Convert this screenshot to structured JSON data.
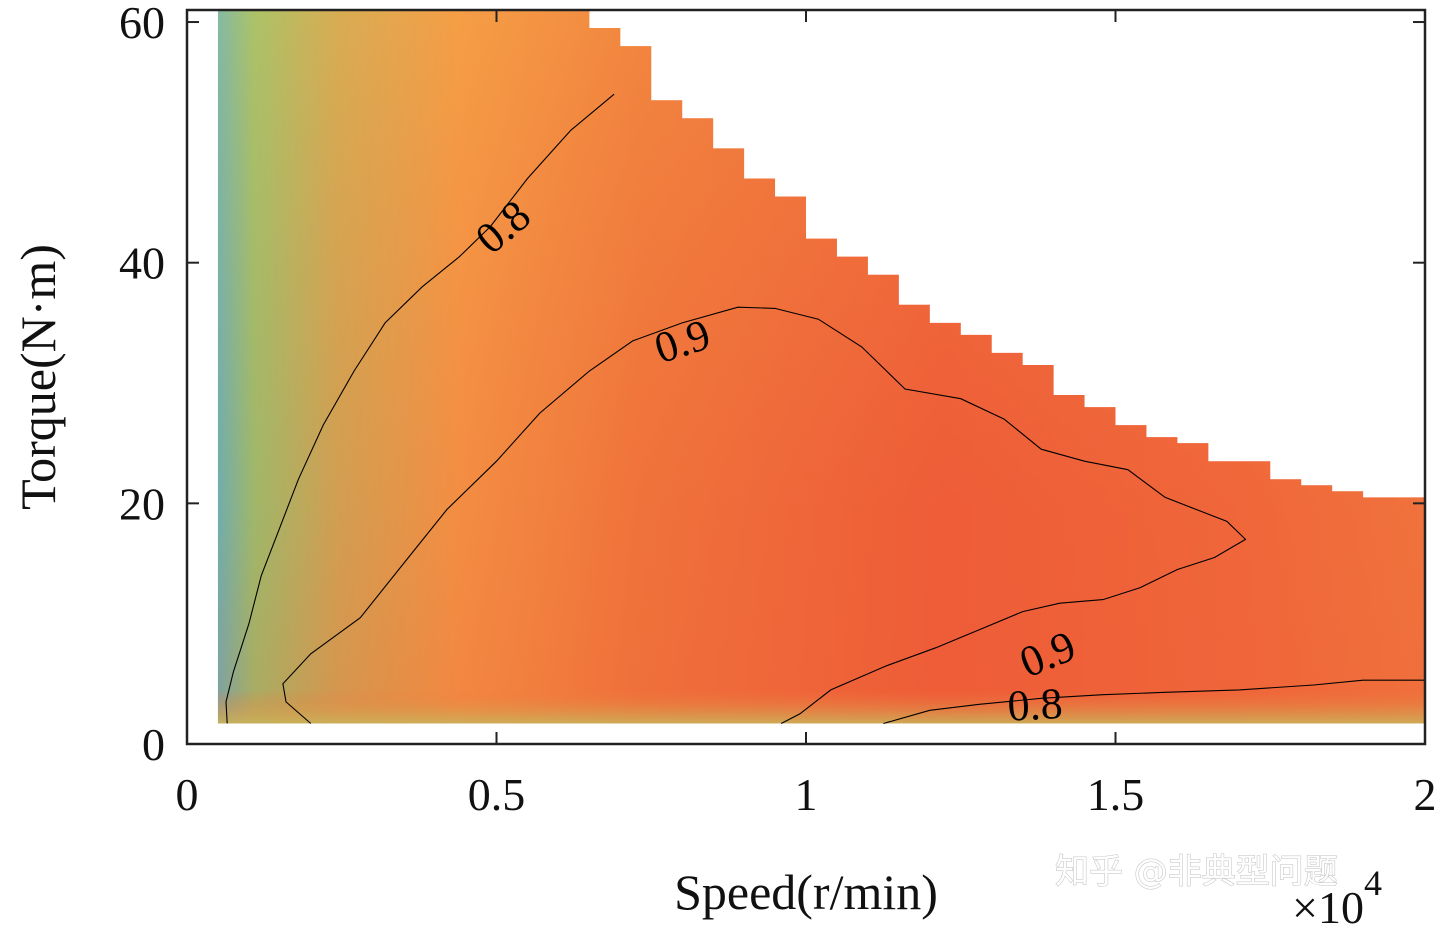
{
  "chart_data": {
    "type": "heatmap",
    "xlabel": "Speed(r/min)",
    "ylabel": "Torque(N·m)",
    "x_multiplier_label": "×10",
    "x_multiplier_exponent": "4",
    "xlim": [
      0,
      2
    ],
    "ylim": [
      0,
      61
    ],
    "x_ticks": [
      0,
      0.5,
      1,
      1.5,
      2
    ],
    "x_tick_labels": [
      "0",
      "0.5",
      "1",
      "1.5",
      "2"
    ],
    "y_ticks": [
      0,
      20,
      40,
      60
    ],
    "y_tick_labels": [
      "0",
      "20",
      "40",
      "60"
    ],
    "colormap": [
      "#47c8d4",
      "#85d67a",
      "#c9b45a",
      "#f59e46",
      "#f07a3c",
      "#ef5a37"
    ],
    "region": {
      "x_min": 0.05,
      "y_min": 1.7,
      "torque_limit_steps": [
        [
          0.65,
          61
        ],
        [
          0.7,
          59.5
        ],
        [
          0.75,
          58
        ],
        [
          0.8,
          53.5
        ],
        [
          0.85,
          52
        ],
        [
          0.9,
          49.5
        ],
        [
          0.95,
          47
        ],
        [
          1.0,
          45.5
        ],
        [
          1.05,
          42
        ],
        [
          1.1,
          40.5
        ],
        [
          1.15,
          39
        ],
        [
          1.2,
          36.5
        ],
        [
          1.25,
          35
        ],
        [
          1.3,
          34
        ],
        [
          1.35,
          32.5
        ],
        [
          1.4,
          31.5
        ],
        [
          1.45,
          29
        ],
        [
          1.5,
          28
        ],
        [
          1.55,
          26.5
        ],
        [
          1.6,
          25.5
        ],
        [
          1.65,
          25
        ],
        [
          1.7,
          23.5
        ],
        [
          1.75,
          23.5
        ],
        [
          1.8,
          22
        ],
        [
          1.85,
          21.5
        ],
        [
          1.9,
          21
        ],
        [
          1.95,
          20.5
        ],
        [
          2.0,
          20.5
        ]
      ]
    },
    "contours": [
      {
        "level": 0.8,
        "label": "0.8",
        "points": [
          [
            0.065,
            1.7
          ],
          [
            0.063,
            3.5
          ],
          [
            0.075,
            6
          ],
          [
            0.1,
            10
          ],
          [
            0.12,
            14
          ],
          [
            0.15,
            18
          ],
          [
            0.18,
            22
          ],
          [
            0.22,
            26.5
          ],
          [
            0.27,
            31
          ],
          [
            0.32,
            35
          ],
          [
            0.38,
            38
          ],
          [
            0.44,
            40.5
          ],
          [
            0.49,
            43
          ],
          [
            0.55,
            47
          ],
          [
            0.62,
            51
          ],
          [
            0.69,
            54
          ]
        ]
      },
      {
        "level": 0.9,
        "label": "0.9",
        "points": [
          [
            0.2,
            1.7
          ],
          [
            0.16,
            3.5
          ],
          [
            0.155,
            5
          ],
          [
            0.2,
            7.5
          ],
          [
            0.28,
            10.5
          ],
          [
            0.35,
            15
          ],
          [
            0.42,
            19.5
          ],
          [
            0.5,
            23.5
          ],
          [
            0.57,
            27.5
          ],
          [
            0.65,
            31
          ],
          [
            0.72,
            33.5
          ],
          [
            0.8,
            35
          ],
          [
            0.89,
            36.3
          ],
          [
            0.95,
            36.2
          ],
          [
            1.02,
            35.3
          ],
          [
            1.09,
            33
          ],
          [
            1.16,
            29.5
          ],
          [
            1.25,
            28.7
          ],
          [
            1.32,
            27
          ],
          [
            1.38,
            24.5
          ],
          [
            1.45,
            23.5
          ],
          [
            1.52,
            22.8
          ],
          [
            1.58,
            20.5
          ],
          [
            1.63,
            19.5
          ],
          [
            1.68,
            18.5
          ],
          [
            1.71,
            17
          ],
          [
            1.66,
            15.5
          ],
          [
            1.6,
            14.5
          ],
          [
            1.54,
            13
          ],
          [
            1.48,
            12
          ],
          [
            1.41,
            11.7
          ],
          [
            1.35,
            11
          ],
          [
            1.28,
            9.5
          ],
          [
            1.21,
            8
          ],
          [
            1.13,
            6.5
          ],
          [
            1.04,
            4.5
          ],
          [
            0.99,
            2.5
          ],
          [
            0.96,
            1.7
          ]
        ]
      },
      {
        "level": 0.8,
        "label": "0.8",
        "points": [
          [
            1.125,
            1.7
          ],
          [
            1.2,
            2.8
          ],
          [
            1.28,
            3.3
          ],
          [
            1.38,
            3.8
          ],
          [
            1.48,
            4.1
          ],
          [
            1.58,
            4.3
          ],
          [
            1.7,
            4.5
          ],
          [
            1.82,
            4.9
          ],
          [
            1.9,
            5.3
          ],
          [
            2.0,
            5.3
          ]
        ]
      }
    ],
    "contour_labels": [
      {
        "text": "0.8",
        "x": 0.51,
        "y": 43,
        "angle": -40
      },
      {
        "text": "0.9",
        "x": 0.8,
        "y": 33.5,
        "angle": -18
      },
      {
        "text": "0.9",
        "x": 1.39,
        "y": 7.5,
        "angle": -22
      },
      {
        "text": "0.8",
        "x": 1.37,
        "y": 3.3,
        "angle": -3
      }
    ]
  },
  "watermark": "知乎 @非典型问题"
}
